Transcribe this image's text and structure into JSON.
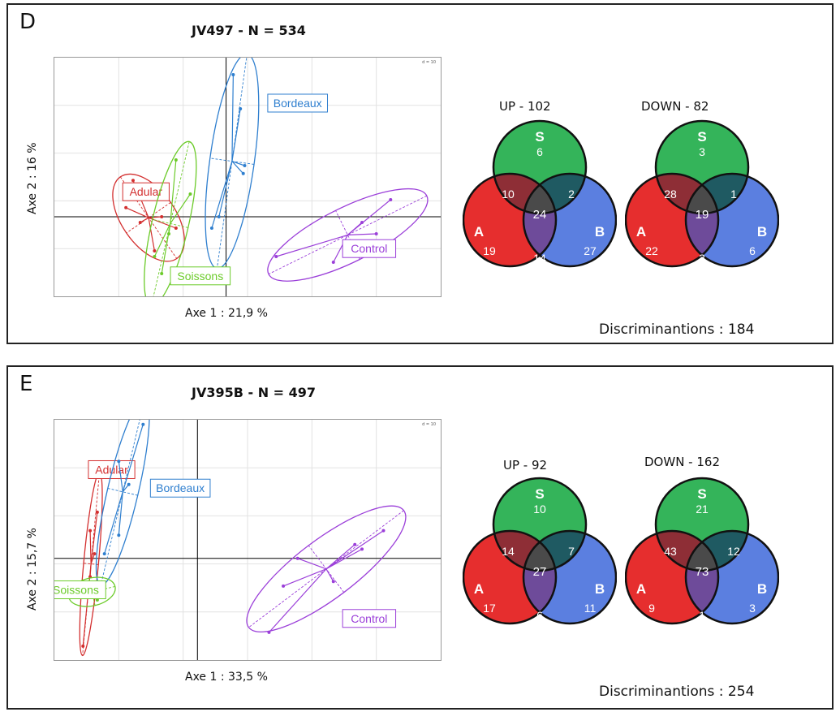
{
  "panels": [
    {
      "letter": "D",
      "title": "JV497 - N = 534",
      "scale_label": "d = 10",
      "xlabel": "Axe 1 : 21,9 %",
      "ylabel": "Axe 2 : 16 %",
      "discriminant": "Discriminantions : 184",
      "up": {
        "title": "UP - 102",
        "s": "6",
        "as": "10",
        "sb": "2",
        "all": "24",
        "a": "19",
        "ab": "14",
        "b": "27"
      },
      "down": {
        "title": "DOWN - 82",
        "s": "3",
        "as": "28",
        "sb": "1",
        "all": "19",
        "a": "22",
        "ab": "3",
        "b": "6"
      }
    },
    {
      "letter": "E",
      "title": "JV395B - N = 497",
      "scale_label": "d = 10",
      "xlabel": "Axe 1 : 33,5 %",
      "ylabel": "Axe 2 : 15,7 %",
      "discriminant": "Discriminantions : 254",
      "up": {
        "title": "UP - 92",
        "s": "10",
        "as": "14",
        "sb": "7",
        "all": "27",
        "a": "17",
        "ab": "6",
        "b": "11"
      },
      "down": {
        "title": "DOWN - 162",
        "s": "21",
        "as": "43",
        "sb": "12",
        "all": "73",
        "a": "9",
        "ab": "1",
        "b": "3"
      }
    }
  ],
  "venn_labels": {
    "s": "S",
    "a": "A",
    "b": "B"
  },
  "groups": {
    "adular": "Adular",
    "bordeaux": "Bordeaux",
    "soissons": "Soissons",
    "control": "Control"
  },
  "colors": {
    "adular": "#d32f2f",
    "bordeaux": "#2f7fcf",
    "soissons": "#6ccb2a",
    "control": "#9b3fd9",
    "venn_s": "#34b45a",
    "venn_a": "#e62e2e",
    "venn_b": "#5b7fe0",
    "venn_as": "#8e2e36",
    "venn_sb": "#1f5a62",
    "venn_ab": "#6e4b9a",
    "venn_center": "#4a4a4a"
  },
  "chart_data": [
    {
      "type": "scatter",
      "title": "JV497 - N = 534",
      "xlabel": "Axe 1 : 21,9 %",
      "ylabel": "Axe 2 : 16 %",
      "series": [
        {
          "name": "Adular",
          "points": [
            [
              -6.5,
              3.2
            ],
            [
              -7.0,
              0.8
            ],
            [
              -5.0,
              -3.0
            ],
            [
              -4.5,
              0.0
            ],
            [
              -6.0,
              -0.5
            ],
            [
              -3.5,
              -1.0
            ]
          ]
        },
        {
          "name": "Bordeaux",
          "points": [
            [
              0.5,
              12.5
            ],
            [
              1.0,
              9.5
            ],
            [
              1.2,
              3.8
            ],
            [
              1.3,
              4.5
            ],
            [
              -0.5,
              0.0
            ],
            [
              -1.0,
              -1.0
            ]
          ]
        },
        {
          "name": "Soissons",
          "points": [
            [
              -3.5,
              5.0
            ],
            [
              -4.5,
              -5.0
            ],
            [
              -5.0,
              -3.5
            ],
            [
              -2.5,
              2.0
            ],
            [
              -4.0,
              -1.5
            ]
          ]
        },
        {
          "name": "Control",
          "points": [
            [
              3.5,
              -3.5
            ],
            [
              7.5,
              -4.0
            ],
            [
              10.5,
              -1.5
            ],
            [
              11.5,
              1.5
            ],
            [
              9.5,
              -0.5
            ]
          ]
        }
      ]
    },
    {
      "type": "scatter",
      "title": "JV395B - N = 497",
      "xlabel": "Axe 1 : 33,5 %",
      "ylabel": "Axe 2 : 15,7 %",
      "series": [
        {
          "name": "Adular",
          "points": [
            [
              -7.5,
              3.0
            ],
            [
              -7.0,
              5.0
            ],
            [
              -7.5,
              -2.0
            ],
            [
              -8.0,
              -9.5
            ],
            [
              -7.2,
              0.5
            ]
          ]
        },
        {
          "name": "Bordeaux",
          "points": [
            [
              -5.5,
              10.5
            ],
            [
              -4.8,
              8.0
            ],
            [
              -6.5,
              0.5
            ],
            [
              -5.5,
              2.5
            ],
            [
              -3.8,
              14.5
            ]
          ]
        },
        {
          "name": "Soissons",
          "points": [
            [
              -8.5,
              -4.0
            ],
            [
              -7.5,
              -3.0
            ],
            [
              -7.0,
              -4.5
            ],
            [
              -6.5,
              -3.0
            ]
          ]
        },
        {
          "name": "Control",
          "points": [
            [
              7.0,
              0.0
            ],
            [
              11.0,
              1.5
            ],
            [
              13.0,
              3.0
            ],
            [
              6.0,
              -3.0
            ],
            [
              9.5,
              -2.5
            ],
            [
              11.5,
              1.0
            ],
            [
              5.0,
              -8.0
            ]
          ]
        }
      ]
    }
  ]
}
